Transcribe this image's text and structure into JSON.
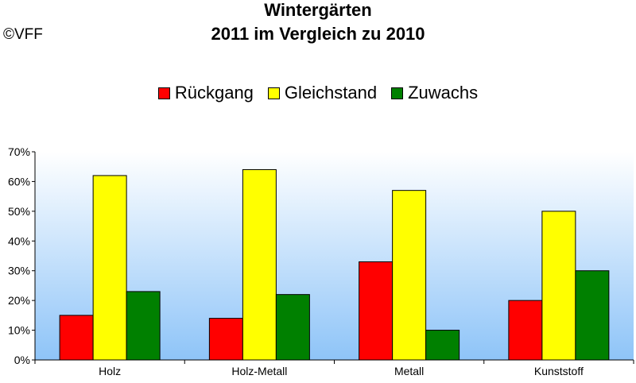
{
  "copyright": "©VFF",
  "title_line1": "Wintergärten",
  "title_line2": "2011 im Vergleich zu 2010",
  "chart_data": {
    "type": "bar",
    "title": "Wintergärten 2011 im Vergleich zu 2010",
    "categories": [
      "Holz",
      "Holz-Metall",
      "Metall",
      "Kunststoff"
    ],
    "series": [
      {
        "name": "Rückgang",
        "color": "#ff0000",
        "values": [
          15,
          14,
          33,
          20
        ]
      },
      {
        "name": "Gleichstand",
        "color": "#ffff00",
        "values": [
          62,
          64,
          57,
          50
        ]
      },
      {
        "name": "Zuwachs",
        "color": "#008000",
        "values": [
          23,
          22,
          10,
          30
        ]
      }
    ],
    "ylim": [
      0,
      70
    ],
    "yticks": [
      "0%",
      "10%",
      "20%",
      "30%",
      "40%",
      "50%",
      "60%",
      "70%"
    ],
    "xlabel": "",
    "ylabel": "",
    "legend": "top",
    "plot_background": "gradient white to light blue",
    "grid": false
  }
}
